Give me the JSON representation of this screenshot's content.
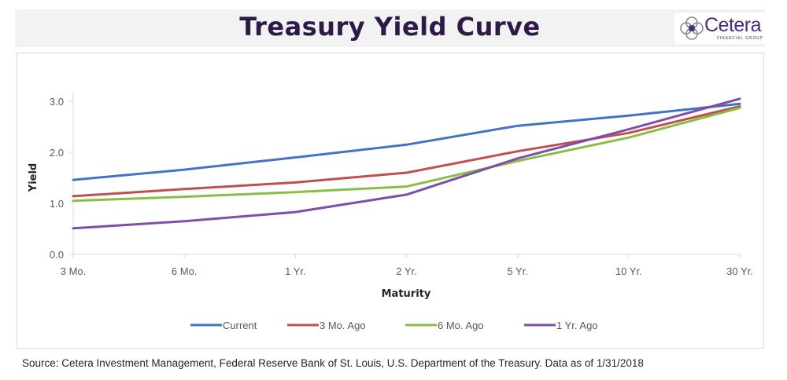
{
  "header": {
    "title": "Treasury Yield Curve",
    "logo_text": "Cetera",
    "logo_subtext": "FINANCIAL GROUP"
  },
  "footer": {
    "source": "Source: Cetera Investment Management, Federal Reserve Bank of St. Louis, U.S. Department of the Treasury. Data as of 1/31/2018"
  },
  "chart_data": {
    "type": "line",
    "title": "Treasury Yield Curve",
    "xlabel": "Maturity",
    "ylabel": "Yield",
    "categories": [
      "3 Mo.",
      "6 Mo.",
      "1 Yr.",
      "2 Yr.",
      "5 Yr.",
      "10 Yr.",
      "30 Yr."
    ],
    "ylim": [
      0,
      3.0
    ],
    "yticks": [
      "0.0",
      "1.0",
      "2.0",
      "3.0"
    ],
    "grid": false,
    "legend_position": "bottom",
    "series": [
      {
        "name": "Current",
        "color": "#4472c4",
        "values": [
          1.46,
          1.66,
          1.9,
          2.15,
          2.52,
          2.72,
          2.95
        ]
      },
      {
        "name": "3 Mo. Ago",
        "color": "#c0504d",
        "values": [
          1.14,
          1.28,
          1.41,
          1.6,
          2.02,
          2.38,
          2.9
        ]
      },
      {
        "name": "6 Mo. Ago",
        "color": "#8bbd45",
        "values": [
          1.05,
          1.13,
          1.22,
          1.33,
          1.83,
          2.29,
          2.87
        ]
      },
      {
        "name": "1 Yr. Ago",
        "color": "#7e4fa7",
        "values": [
          0.51,
          0.65,
          0.83,
          1.17,
          1.88,
          2.45,
          3.05
        ]
      }
    ]
  }
}
